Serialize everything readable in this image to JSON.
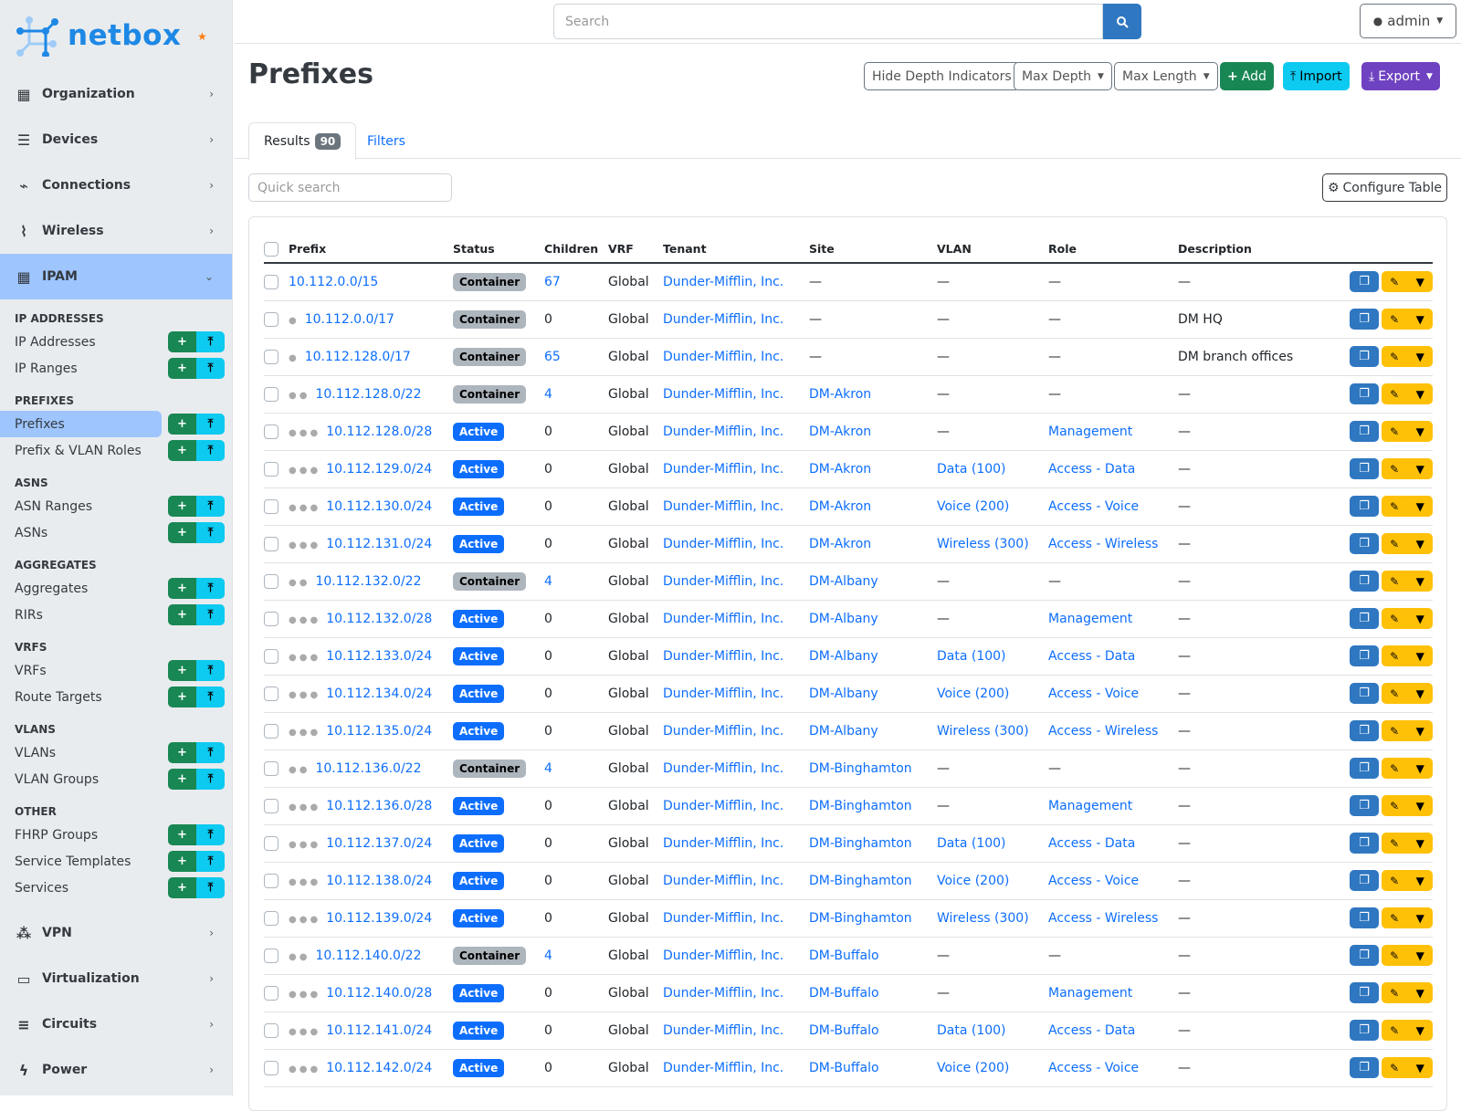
{
  "brand": {
    "name": "netbox",
    "color": "#1e88e5"
  },
  "sidebar": {
    "top_menus": [
      {
        "label": "Organization",
        "icon": "building-icon"
      },
      {
        "label": "Devices",
        "icon": "server-icon"
      },
      {
        "label": "Connections",
        "icon": "plug-icon"
      },
      {
        "label": "Wireless",
        "icon": "wifi-icon"
      }
    ],
    "active_menu": {
      "label": "IPAM",
      "icon": "ipam-icon"
    },
    "groups": [
      {
        "title": "IP Addresses",
        "items": [
          "IP Addresses",
          "IP Ranges"
        ]
      },
      {
        "title": "Prefixes",
        "items": [
          "Prefixes",
          "Prefix & VLAN Roles"
        ]
      },
      {
        "title": "ASNs",
        "items": [
          "ASN Ranges",
          "ASNs"
        ]
      },
      {
        "title": "Aggregates",
        "items": [
          "Aggregates",
          "RIRs"
        ]
      },
      {
        "title": "VRFs",
        "items": [
          "VRFs",
          "Route Targets"
        ]
      },
      {
        "title": "VLANs",
        "items": [
          "VLANs",
          "VLAN Groups"
        ]
      },
      {
        "title": "Other",
        "items": [
          "FHRP Groups",
          "Service Templates",
          "Services"
        ]
      }
    ],
    "selected_item": "Prefixes",
    "bottom_menus": [
      {
        "label": "VPN",
        "icon": "vpn-icon"
      },
      {
        "label": "Virtualization",
        "icon": "monitor-icon"
      },
      {
        "label": "Circuits",
        "icon": "circuits-icon"
      },
      {
        "label": "Power",
        "icon": "power-icon"
      }
    ]
  },
  "topbar": {
    "search_placeholder": "Search",
    "user": "admin"
  },
  "page": {
    "title": "Prefixes"
  },
  "toolbar": {
    "hide_depth": "Hide Depth Indicators",
    "max_depth": "Max Depth",
    "max_length": "Max Length",
    "add": "Add",
    "import": "Import",
    "export": "Export"
  },
  "tabs": {
    "results": "Results",
    "results_count": "90",
    "filters": "Filters"
  },
  "quick_search_placeholder": "Quick search",
  "configure_table": "Configure Table",
  "table": {
    "columns": [
      "Prefix",
      "Status",
      "Children",
      "VRF",
      "Tenant",
      "Site",
      "VLAN",
      "Role",
      "Description"
    ],
    "rows": [
      [
        0,
        "10.112.0.0/15",
        "Container",
        "67",
        "Global",
        "Dunder-Mifflin, Inc.",
        "—",
        "—",
        "—",
        "—"
      ],
      [
        1,
        "10.112.0.0/17",
        "Container",
        "0",
        "Global",
        "Dunder-Mifflin, Inc.",
        "—",
        "—",
        "—",
        "DM HQ"
      ],
      [
        1,
        "10.112.128.0/17",
        "Container",
        "65",
        "Global",
        "Dunder-Mifflin, Inc.",
        "—",
        "—",
        "—",
        "DM branch offices"
      ],
      [
        2,
        "10.112.128.0/22",
        "Container",
        "4",
        "Global",
        "Dunder-Mifflin, Inc.",
        "DM-Akron",
        "—",
        "—",
        "—"
      ],
      [
        3,
        "10.112.128.0/28",
        "Active",
        "0",
        "Global",
        "Dunder-Mifflin, Inc.",
        "DM-Akron",
        "—",
        "Management",
        "—"
      ],
      [
        3,
        "10.112.129.0/24",
        "Active",
        "0",
        "Global",
        "Dunder-Mifflin, Inc.",
        "DM-Akron",
        "Data (100)",
        "Access - Data",
        "—"
      ],
      [
        3,
        "10.112.130.0/24",
        "Active",
        "0",
        "Global",
        "Dunder-Mifflin, Inc.",
        "DM-Akron",
        "Voice (200)",
        "Access - Voice",
        "—"
      ],
      [
        3,
        "10.112.131.0/24",
        "Active",
        "0",
        "Global",
        "Dunder-Mifflin, Inc.",
        "DM-Akron",
        "Wireless (300)",
        "Access - Wireless",
        "—"
      ],
      [
        2,
        "10.112.132.0/22",
        "Container",
        "4",
        "Global",
        "Dunder-Mifflin, Inc.",
        "DM-Albany",
        "—",
        "—",
        "—"
      ],
      [
        3,
        "10.112.132.0/28",
        "Active",
        "0",
        "Global",
        "Dunder-Mifflin, Inc.",
        "DM-Albany",
        "—",
        "Management",
        "—"
      ],
      [
        3,
        "10.112.133.0/24",
        "Active",
        "0",
        "Global",
        "Dunder-Mifflin, Inc.",
        "DM-Albany",
        "Data (100)",
        "Access - Data",
        "—"
      ],
      [
        3,
        "10.112.134.0/24",
        "Active",
        "0",
        "Global",
        "Dunder-Mifflin, Inc.",
        "DM-Albany",
        "Voice (200)",
        "Access - Voice",
        "—"
      ],
      [
        3,
        "10.112.135.0/24",
        "Active",
        "0",
        "Global",
        "Dunder-Mifflin, Inc.",
        "DM-Albany",
        "Wireless (300)",
        "Access - Wireless",
        "—"
      ],
      [
        2,
        "10.112.136.0/22",
        "Container",
        "4",
        "Global",
        "Dunder-Mifflin, Inc.",
        "DM-Binghamton",
        "—",
        "—",
        "—"
      ],
      [
        3,
        "10.112.136.0/28",
        "Active",
        "0",
        "Global",
        "Dunder-Mifflin, Inc.",
        "DM-Binghamton",
        "—",
        "Management",
        "—"
      ],
      [
        3,
        "10.112.137.0/24",
        "Active",
        "0",
        "Global",
        "Dunder-Mifflin, Inc.",
        "DM-Binghamton",
        "Data (100)",
        "Access - Data",
        "—"
      ],
      [
        3,
        "10.112.138.0/24",
        "Active",
        "0",
        "Global",
        "Dunder-Mifflin, Inc.",
        "DM-Binghamton",
        "Voice (200)",
        "Access - Voice",
        "—"
      ],
      [
        3,
        "10.112.139.0/24",
        "Active",
        "0",
        "Global",
        "Dunder-Mifflin, Inc.",
        "DM-Binghamton",
        "Wireless (300)",
        "Access - Wireless",
        "—"
      ],
      [
        2,
        "10.112.140.0/22",
        "Container",
        "4",
        "Global",
        "Dunder-Mifflin, Inc.",
        "DM-Buffalo",
        "—",
        "—",
        "—"
      ],
      [
        3,
        "10.112.140.0/28",
        "Active",
        "0",
        "Global",
        "Dunder-Mifflin, Inc.",
        "DM-Buffalo",
        "—",
        "Management",
        "—"
      ],
      [
        3,
        "10.112.141.0/24",
        "Active",
        "0",
        "Global",
        "Dunder-Mifflin, Inc.",
        "DM-Buffalo",
        "Data (100)",
        "Access - Data",
        "—"
      ],
      [
        3,
        "10.112.142.0/24",
        "Active",
        "0",
        "Global",
        "Dunder-Mifflin, Inc.",
        "DM-Buffalo",
        "Voice (200)",
        "Access - Voice",
        "—"
      ]
    ]
  },
  "colors": {
    "link": "#0d6efd",
    "active_badge": "#0d6efd",
    "container_badge": "#adb5bd",
    "add": "#198754",
    "import": "#0dcaf0",
    "export": "#6f42c1",
    "edit": "#ffc107",
    "sidebar_active": "#9ec5fe"
  }
}
